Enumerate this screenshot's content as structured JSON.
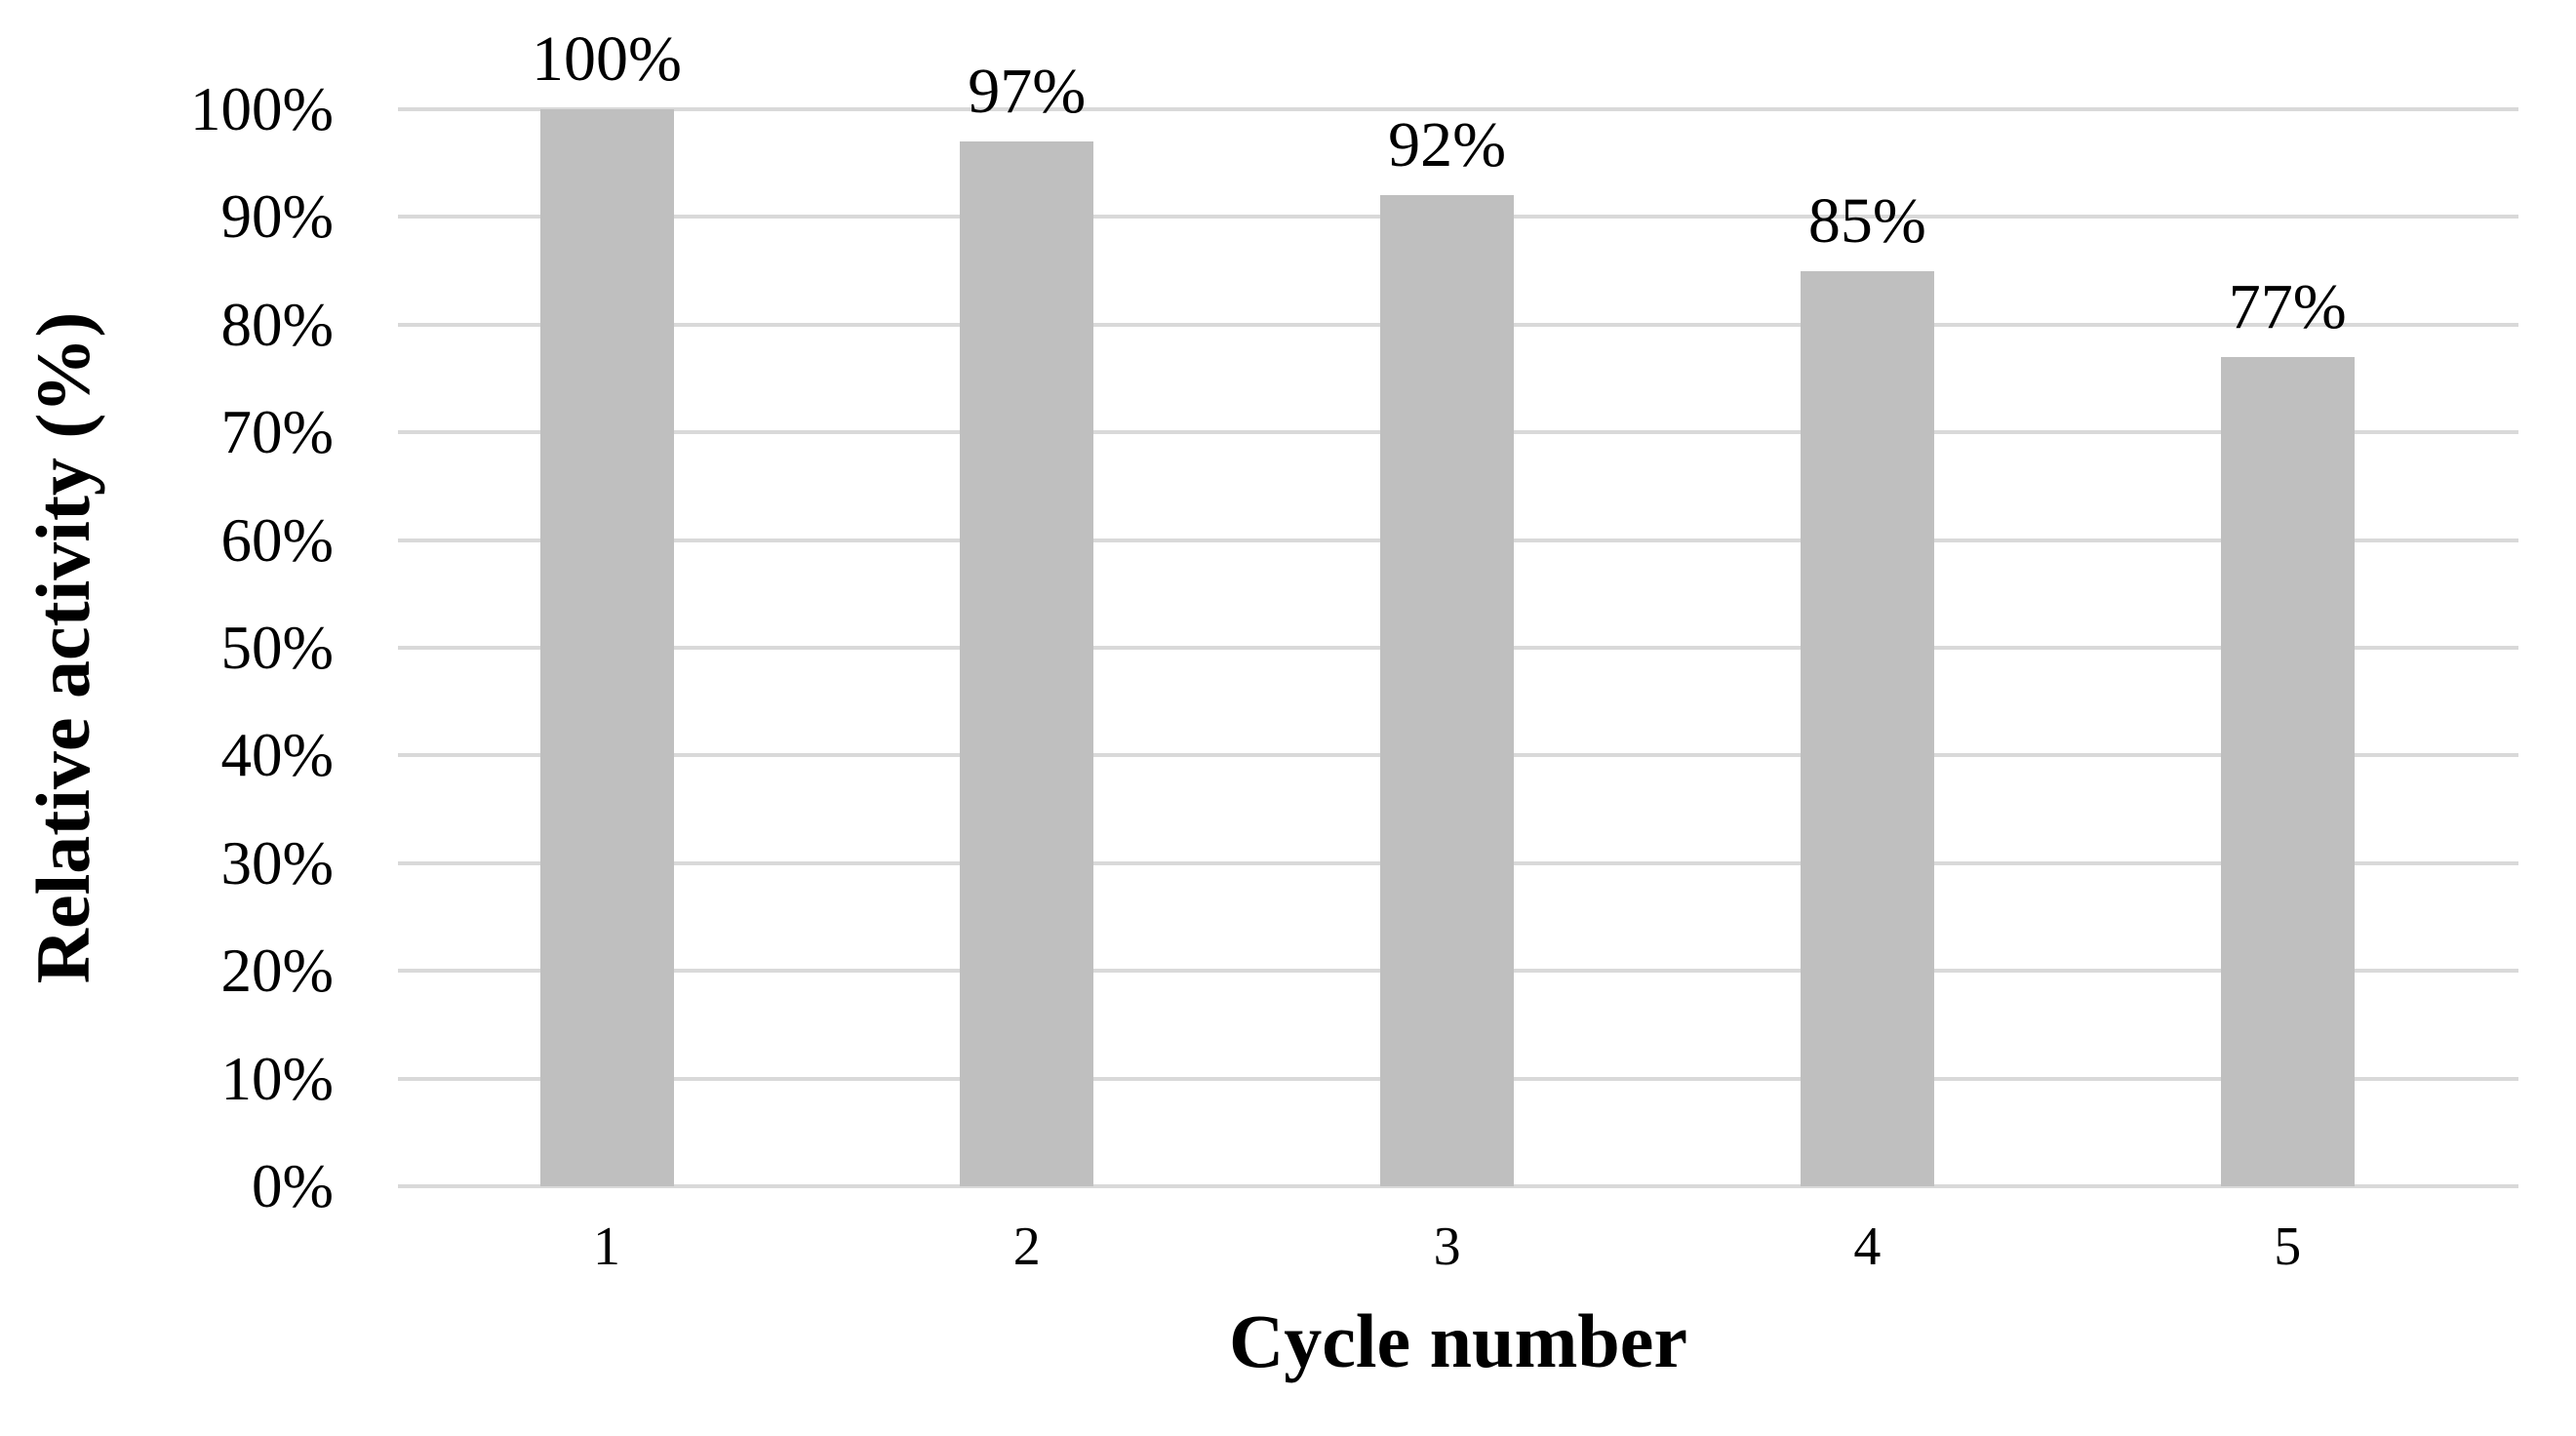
{
  "chart_data": {
    "type": "bar",
    "title": "",
    "xlabel": "Cycle number",
    "ylabel": "Relative activity (%)",
    "categories": [
      "1",
      "2",
      "3",
      "4",
      "5"
    ],
    "values": [
      100,
      97,
      92,
      85,
      77
    ],
    "data_labels": [
      "100%",
      "97%",
      "92%",
      "85%",
      "77%"
    ],
    "yticks": [
      "0%",
      "10%",
      "20%",
      "30%",
      "40%",
      "50%",
      "60%",
      "70%",
      "80%",
      "90%",
      "100%"
    ],
    "ylim": [
      0,
      100
    ],
    "grid": "horizontal",
    "legend": "none",
    "colors": {
      "bar_fill": "#bfbfbf",
      "gridline": "#d9d9d9",
      "text": "#000000",
      "background": "#ffffff"
    }
  }
}
